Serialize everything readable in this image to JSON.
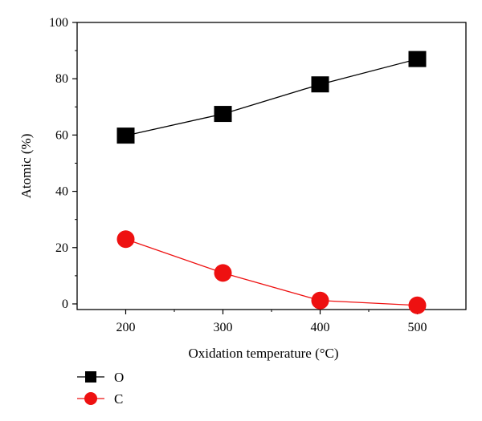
{
  "chart_data": {
    "type": "line",
    "xlabel": "Oxidation temperature (°C)",
    "ylabel": "Atomic (%)",
    "x": [
      200,
      300,
      400,
      500
    ],
    "xlim": [
      150,
      550
    ],
    "ylim": [
      -2,
      100
    ],
    "xticks": [
      200,
      300,
      400,
      500
    ],
    "yticks": [
      0,
      20,
      40,
      60,
      80,
      100
    ],
    "grid": false,
    "legend_position": "bottom-left",
    "series": [
      {
        "name": "O",
        "values": [
          59.8,
          67.5,
          78,
          87
        ],
        "color": "#000000",
        "marker": "square"
      },
      {
        "name": "C",
        "values": [
          23,
          11,
          1.2,
          -0.5
        ],
        "color": "#ee1111",
        "marker": "circle"
      }
    ]
  }
}
